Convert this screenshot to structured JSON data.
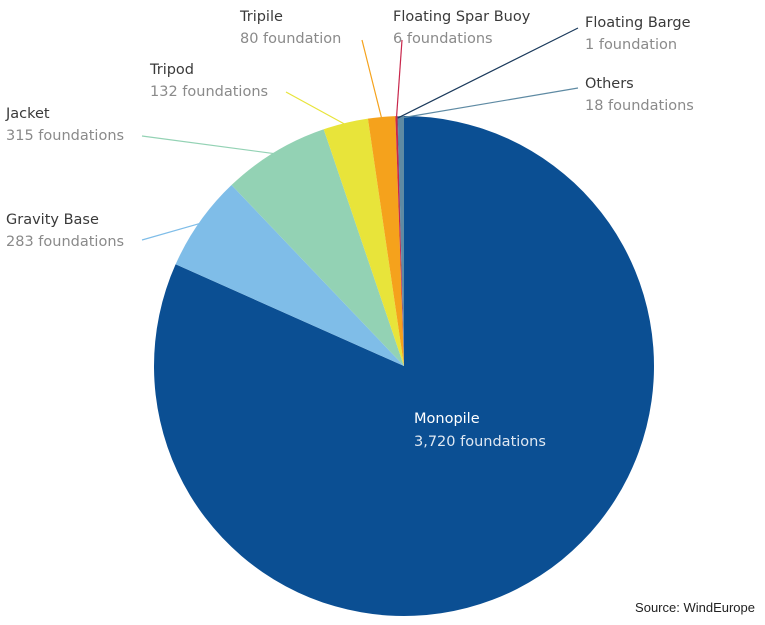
{
  "chart_data": {
    "type": "pie",
    "unit": "foundations",
    "slices": [
      {
        "name": "Monopile",
        "value": 3720,
        "label": "3,720 foundations",
        "color": "#0b4f93"
      },
      {
        "name": "Gravity Base",
        "value": 283,
        "label": "283 foundations",
        "color": "#7fbde8"
      },
      {
        "name": "Jacket",
        "value": 315,
        "label": "315 foundations",
        "color": "#93d2b4"
      },
      {
        "name": "Tripod",
        "value": 132,
        "label": "132 foundations",
        "color": "#e8e43a"
      },
      {
        "name": "Tripile",
        "value": 80,
        "label": "80 foundation",
        "color": "#f5a21c"
      },
      {
        "name": "Floating Spar Buoy",
        "value": 6,
        "label": "6 foundations",
        "color": "#c8264b"
      },
      {
        "name": "Floating Barge",
        "value": 1,
        "label": "1 foundation",
        "color": "#1b3a5c"
      },
      {
        "name": "Others",
        "value": 18,
        "label": "18 foundations",
        "color": "#5e8aa3"
      }
    ]
  },
  "source": "Source: WindEurope"
}
